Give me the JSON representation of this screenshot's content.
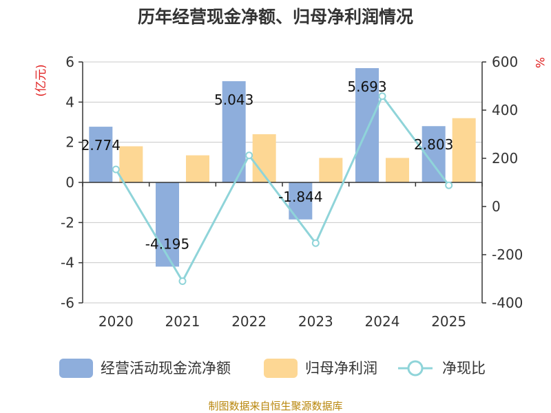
{
  "title": "历年经营现金净额、归母净利润情况",
  "source": "制图数据来自恒生聚源数据库",
  "colors": {
    "cash": "#8eaedc",
    "profit": "#fdd794",
    "ratio": "#8fd4d9"
  },
  "chart_data": {
    "type": "bar",
    "categories": [
      "2020",
      "2021",
      "2022",
      "2023",
      "2024",
      "2025"
    ],
    "series": [
      {
        "name": "经营活动现金流净额",
        "type": "bar",
        "axis": "left",
        "values": [
          2.774,
          -4.195,
          5.043,
          -1.844,
          5.693,
          2.803
        ],
        "labels": [
          "2.774",
          "-4.195",
          "5.043",
          "-1.844",
          "5.693",
          "2.803"
        ]
      },
      {
        "name": "归母净利润",
        "type": "bar",
        "axis": "left",
        "values": [
          1.8,
          1.35,
          2.4,
          1.22,
          1.22,
          3.2
        ]
      },
      {
        "name": "净现比",
        "type": "line",
        "axis": "right",
        "values": [
          154,
          -310,
          212,
          -152,
          458,
          88
        ]
      }
    ],
    "y_left": {
      "unit": "(亿元)",
      "min": -6,
      "max": 6,
      "ticks": [
        6,
        4,
        2,
        0,
        -2,
        -4,
        -6
      ],
      "tick_labels": [
        "6",
        "4",
        "2",
        "0",
        "-2",
        "-4",
        "-6"
      ]
    },
    "y_right": {
      "unit": "%",
      "min": -400,
      "max": 600,
      "ticks": [
        600,
        400,
        200,
        0,
        -200,
        -400
      ],
      "tick_labels": [
        "600",
        "400",
        "200",
        "0",
        "-200",
        "-400"
      ]
    },
    "grid": true,
    "legend": "bottom"
  }
}
